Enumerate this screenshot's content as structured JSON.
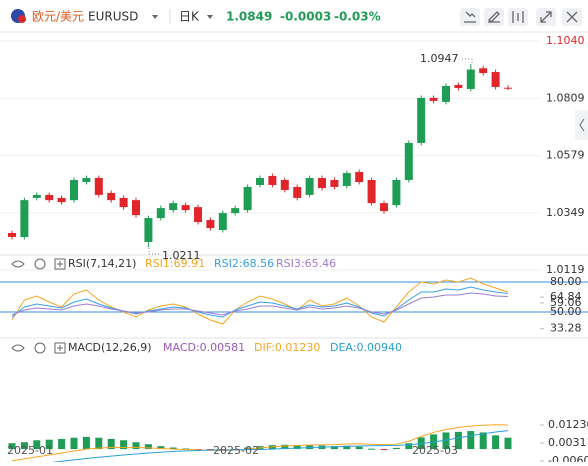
{
  "header": {
    "pair": "欧元/美元",
    "symbol": "EURUSD",
    "period": "日K",
    "price": "1.0849",
    "change": "-0.0003",
    "change_pct": "-0.03%"
  },
  "x_axis_labels": [
    "2025-01",
    "2025-02",
    "2025-03"
  ],
  "chart_data": [
    {
      "type": "candlestick",
      "up_color": "#1f9d55",
      "down_color": "#e0262b",
      "open": [
        1.0268,
        1.0252,
        1.0409,
        1.0421,
        1.0409,
        1.04,
        1.0473,
        1.0489,
        1.0429,
        1.0409,
        1.04,
        1.0232,
        1.0328,
        1.036,
        1.038,
        1.0372,
        1.032,
        1.028,
        1.0348,
        1.036,
        1.0461,
        1.0497,
        1.0481,
        1.0453,
        1.0421,
        1.0489,
        1.0481,
        1.0457,
        1.0513,
        1.0481,
        1.0388,
        1.038,
        1.0481,
        1.063,
        1.0811,
        1.0795,
        1.0863,
        1.0847,
        1.093,
        1.0915,
        1.0852
      ],
      "high": [
        1.0278,
        1.041,
        1.0431,
        1.0431,
        1.0419,
        1.0491,
        1.0499,
        1.0499,
        1.0439,
        1.0419,
        1.041,
        1.0338,
        1.0378,
        1.0398,
        1.039,
        1.0382,
        1.033,
        1.0358,
        1.0378,
        1.0463,
        1.0499,
        1.0507,
        1.0491,
        1.0463,
        1.0499,
        1.0499,
        1.0491,
        1.0519,
        1.0523,
        1.0491,
        1.0398,
        1.0491,
        1.064,
        1.0821,
        1.0821,
        1.0869,
        1.0873,
        1.0947,
        1.094,
        1.0925,
        1.0862
      ],
      "low": [
        1.0242,
        1.0242,
        1.0399,
        1.039,
        1.0382,
        1.039,
        1.0463,
        1.0411,
        1.039,
        1.0362,
        1.033,
        1.0211,
        1.0318,
        1.035,
        1.035,
        1.0302,
        1.0278,
        1.027,
        1.0338,
        1.035,
        1.0451,
        1.0451,
        1.0431,
        1.0399,
        1.0411,
        1.0439,
        1.0443,
        1.0447,
        1.0463,
        1.0378,
        1.0346,
        1.037,
        1.0471,
        1.062,
        1.0789,
        1.0785,
        1.0841,
        1.0837,
        1.0901,
        1.0845,
        1.0842
      ],
      "close": [
        1.0252,
        1.04,
        1.0421,
        1.04,
        1.0392,
        1.0481,
        1.0489,
        1.0421,
        1.04,
        1.0372,
        1.034,
        1.0328,
        1.0368,
        1.0388,
        1.036,
        1.0312,
        1.0288,
        1.0348,
        1.0368,
        1.0453,
        1.0489,
        1.0461,
        1.0441,
        1.0409,
        1.0489,
        1.0449,
        1.0453,
        1.0509,
        1.0473,
        1.0388,
        1.0356,
        1.0481,
        1.063,
        1.0811,
        1.0799,
        1.0859,
        1.0851,
        1.0925,
        1.0911,
        1.0855,
        1.0849
      ],
      "ylim": [
        1.0079,
        1.1076
      ],
      "yticks": [
        {
          "value": 1.104,
          "label": "1.1040"
        },
        1.0809,
        1.0579,
        1.0349,
        1.0119
      ],
      "annotations": [
        {
          "text": "1.0947"
        },
        {
          "text": "1.0211"
        }
      ]
    },
    {
      "type": "line",
      "title": "RSI(7,14,21)",
      "ylim": [
        28,
        86
      ],
      "yticks": [
        {
          "value": 80,
          "label": "80.00"
        },
        64.84,
        59.06,
        {
          "value": 50,
          "label": "50.00"
        },
        33.28
      ],
      "series": [
        {
          "name": "RSI1:69.91",
          "color": "#f5a623",
          "values": [
            42,
            62,
            66,
            60,
            55,
            68,
            72,
            62,
            55,
            50,
            45,
            52,
            56,
            58,
            55,
            48,
            42,
            38,
            52,
            60,
            66,
            63,
            58,
            52,
            62,
            56,
            58,
            64,
            56,
            45,
            40,
            55,
            70,
            80,
            78,
            82,
            80,
            84,
            78,
            74,
            69.91
          ]
        },
        {
          "name": "RSI2:68.56",
          "color": "#3aa0e6",
          "values": [
            45,
            55,
            58,
            56,
            54,
            60,
            63,
            58,
            54,
            51,
            48,
            51,
            53,
            55,
            54,
            50,
            47,
            45,
            52,
            56,
            60,
            59,
            56,
            53,
            57,
            55,
            56,
            59,
            55,
            49,
            46,
            53,
            62,
            70,
            70,
            73,
            72,
            75,
            72,
            70,
            68.56
          ]
        },
        {
          "name": "RSI3:65.46",
          "color": "#9b7fd1",
          "values": [
            47,
            52,
            54,
            53,
            52,
            56,
            58,
            56,
            53,
            51,
            49,
            50,
            52,
            53,
            53,
            51,
            49,
            47,
            51,
            53,
            56,
            56,
            54,
            52,
            55,
            53,
            54,
            56,
            54,
            50,
            48,
            52,
            58,
            64,
            65,
            67,
            67,
            69,
            68,
            66,
            65.46
          ]
        }
      ]
    },
    {
      "type": "macd",
      "title": "MACD(12,26,9)",
      "ylim": [
        -0.0066,
        0.0496
      ],
      "yticks": [
        {
          "value": 0.0123,
          "label": "0.01230"
        },
        0.00311,
        -0.00605
      ],
      "up_color": "#1f9d55",
      "down_color": "#e0262b",
      "series": [
        {
          "name": "MACD:0.00581",
          "color": "#9b59b6",
          "values": [
            0.003,
            0.0035,
            0.0045,
            0.0048,
            0.0052,
            0.0058,
            0.0062,
            0.0058,
            0.0052,
            0.0045,
            0.0035,
            0.0025,
            0.0015,
            0.0008,
            0.0003,
            -0.0003,
            -0.0008,
            -0.001,
            -0.0003,
            0.0008,
            0.0015,
            0.002,
            0.0022,
            0.002,
            0.0022,
            0.0018,
            0.0015,
            0.0017,
            0.0012,
            0.0002,
            -0.0004,
            0.0006,
            0.003,
            0.006,
            0.0075,
            0.0085,
            0.0088,
            0.0092,
            0.0085,
            0.007,
            0.00581
          ]
        },
        {
          "name": "DIF:0.01230",
          "color": "#f5a623",
          "values": [
            -0.006,
            -0.005,
            -0.004,
            -0.003,
            -0.002,
            -0.001,
            0,
            0.0005,
            0.0008,
            0.0009,
            0.0008,
            0.0006,
            0.0003,
            0,
            -0.0002,
            -0.0004,
            -0.0006,
            -0.0007,
            -0.0005,
            0,
            0.0006,
            0.0012,
            0.0016,
            0.0018,
            0.0021,
            0.0022,
            0.0023,
            0.0026,
            0.0027,
            0.0025,
            0.0022,
            0.0025,
            0.004,
            0.0065,
            0.0085,
            0.01,
            0.011,
            0.0118,
            0.0122,
            0.0124,
            0.0123
          ]
        },
        {
          "name": "DEA:0.00940",
          "color": "#2ba0d8",
          "values": [
            -0.009,
            -0.0085,
            -0.0078,
            -0.007,
            -0.0062,
            -0.0055,
            -0.0048,
            -0.0042,
            -0.0036,
            -0.003,
            -0.0025,
            -0.002,
            -0.0016,
            -0.0012,
            -0.0009,
            -0.0007,
            -0.0005,
            -0.0004,
            -0.0004,
            -0.0003,
            -0.0002,
            0,
            0.0003,
            0.0005,
            0.0008,
            0.001,
            0.0012,
            0.0014,
            0.0016,
            0.0017,
            0.0018,
            0.0019,
            0.0022,
            0.0028,
            0.0036,
            0.0046,
            0.0057,
            0.0068,
            0.0078,
            0.0087,
            0.0094
          ]
        }
      ]
    }
  ]
}
